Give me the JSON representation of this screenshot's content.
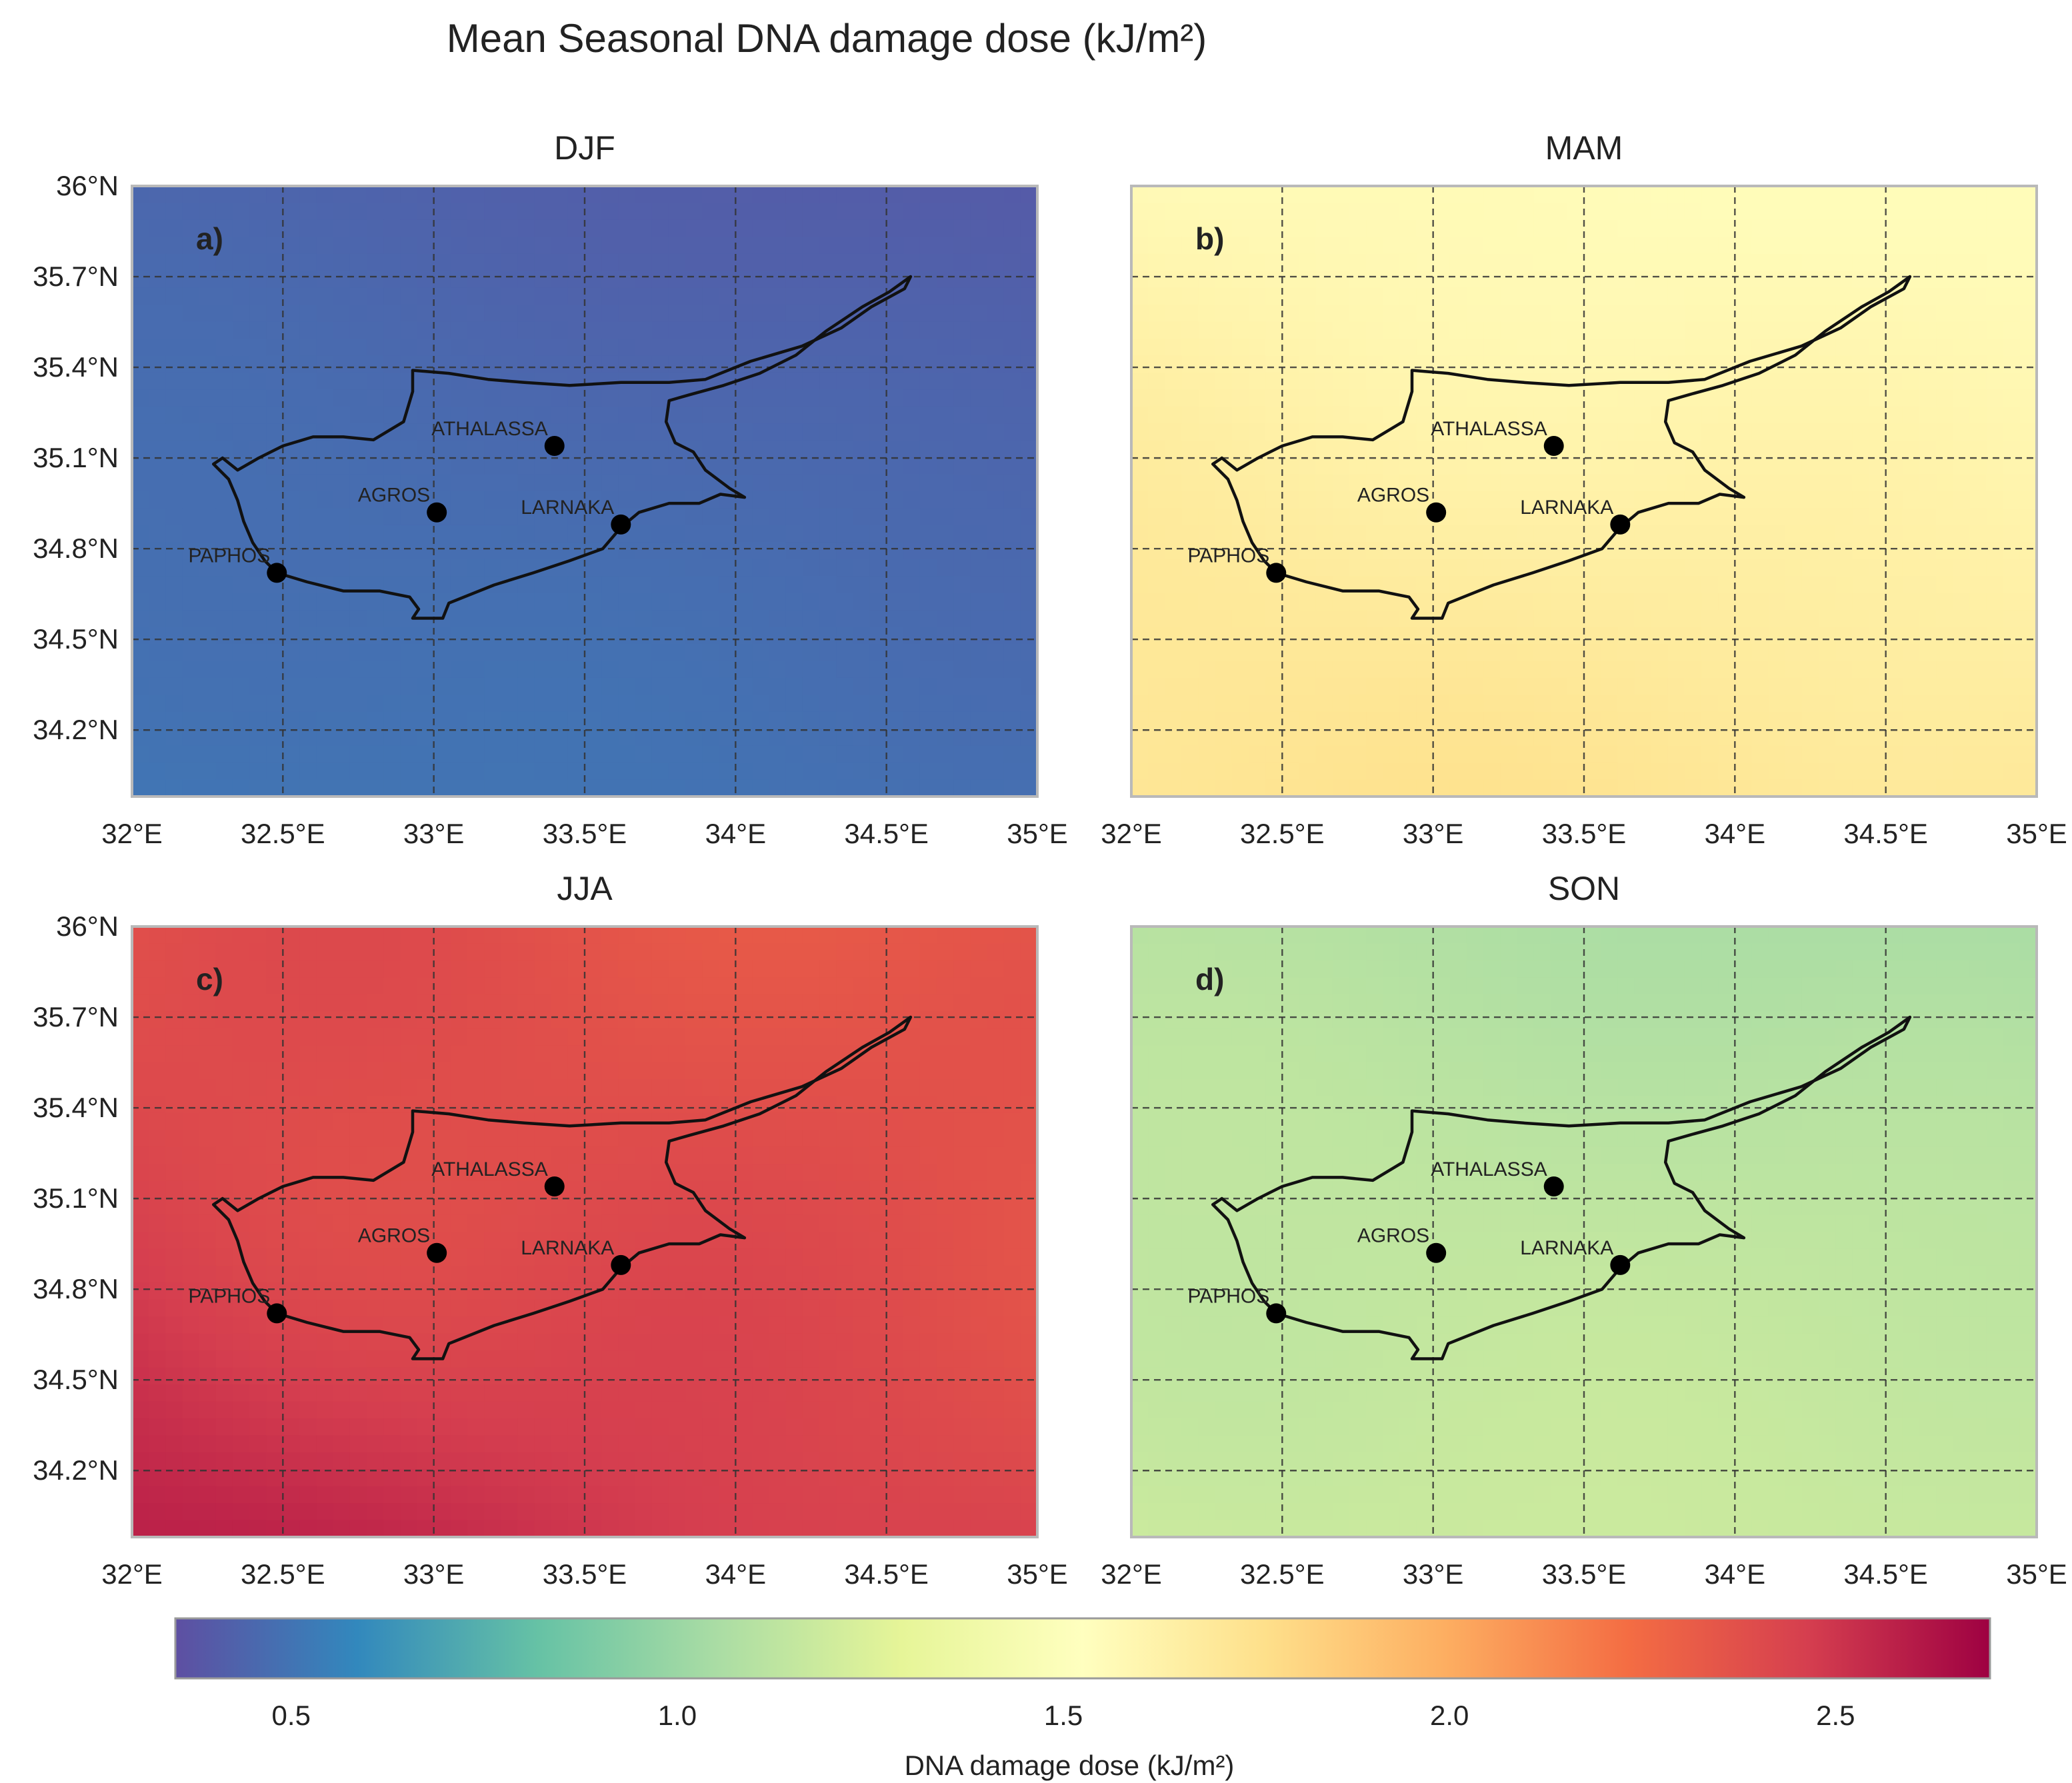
{
  "chart_data": {
    "type": "heatmap",
    "title": "Mean Seasonal DNA damage dose (kJ/m²)",
    "x_ticks": [
      "32°E",
      "32.5°E",
      "33°E",
      "33.5°E",
      "34°E",
      "34.5°E",
      "35°E"
    ],
    "y_ticks": [
      "36°N",
      "35.7°N",
      "35.4°N",
      "35.1°N",
      "34.8°N",
      "34.5°N",
      "34.2°N"
    ],
    "x_tick_values": [
      32,
      32.5,
      33,
      33.5,
      34,
      34.5,
      35
    ],
    "y_tick_values": [
      36,
      35.7,
      35.4,
      35.1,
      34.8,
      34.5,
      34.2
    ],
    "xlim": [
      32,
      35
    ],
    "ylim": [
      33.98,
      36
    ],
    "grid": true,
    "stations": [
      {
        "name": "ATHALASSA",
        "lon": 33.4,
        "lat": 35.14
      },
      {
        "name": "AGROS",
        "lon": 33.01,
        "lat": 34.92
      },
      {
        "name": "LARNAKA",
        "lon": 33.62,
        "lat": 34.88
      },
      {
        "name": "PAPHOS",
        "lon": 32.48,
        "lat": 34.72
      }
    ],
    "panels": [
      {
        "letter": "a)",
        "title": "DJF",
        "range": [
          0.4,
          0.55
        ],
        "mean": 0.48
      },
      {
        "letter": "b)",
        "title": "MAM",
        "range": [
          1.55,
          1.78
        ],
        "mean": 1.65
      },
      {
        "letter": "c)",
        "title": "JJA",
        "range": [
          2.3,
          2.62
        ],
        "mean": 2.45
      },
      {
        "letter": "d)",
        "title": "SON",
        "range": [
          1.05,
          1.25
        ],
        "mean": 1.13
      }
    ],
    "colorbar": {
      "label": "DNA damage dose (kJ/m²)",
      "ticks": [
        "0.5",
        "1.0",
        "1.5",
        "2.0",
        "2.5"
      ],
      "tick_values": [
        0.5,
        1.0,
        1.5,
        2.0,
        2.5
      ],
      "range": [
        0.35,
        2.7
      ],
      "colormap": "Spectral_r",
      "colors": [
        "#5e4fa2",
        "#3288bd",
        "#66c2a5",
        "#abdda4",
        "#e6f598",
        "#ffffbf",
        "#fee08b",
        "#fdae61",
        "#f46d43",
        "#d53e4f",
        "#9e0142"
      ]
    }
  }
}
